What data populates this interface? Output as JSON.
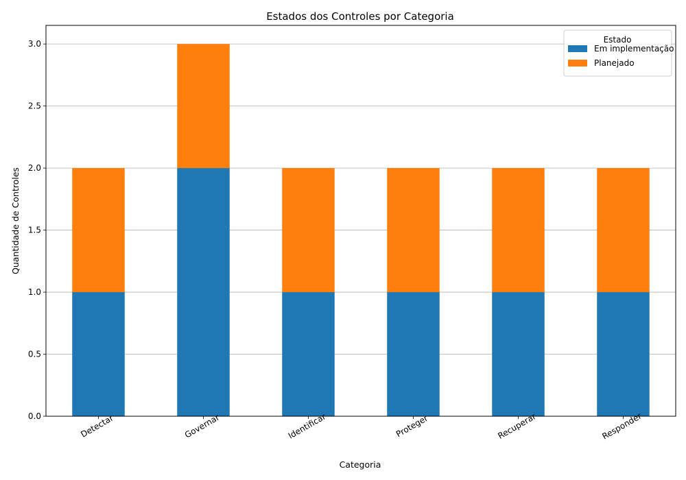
{
  "chart_data": {
    "type": "bar",
    "stacked": true,
    "title": "Estados dos Controles por Categoria",
    "xlabel": "Categoria",
    "ylabel": "Quantidade de Controles",
    "categories": [
      "Detectar",
      "Governar",
      "Identificar",
      "Proteger",
      "Recuperar",
      "Responder"
    ],
    "series": [
      {
        "name": "Em implementação",
        "values": [
          1,
          2,
          1,
          1,
          1,
          1
        ],
        "color": "#1f77b4"
      },
      {
        "name": "Planejado",
        "values": [
          1,
          1,
          1,
          1,
          1,
          1
        ],
        "color": "#ff7f0e"
      }
    ],
    "ylim": [
      0,
      3.15
    ],
    "yticks": [
      "0.0",
      "0.5",
      "1.0",
      "1.5",
      "2.0",
      "2.5",
      "3.0"
    ],
    "ytick_values": [
      0,
      0.5,
      1.0,
      1.5,
      2.0,
      2.5,
      3.0
    ],
    "grid": "y",
    "legend": {
      "title": "Estado",
      "position": "top-right"
    }
  }
}
